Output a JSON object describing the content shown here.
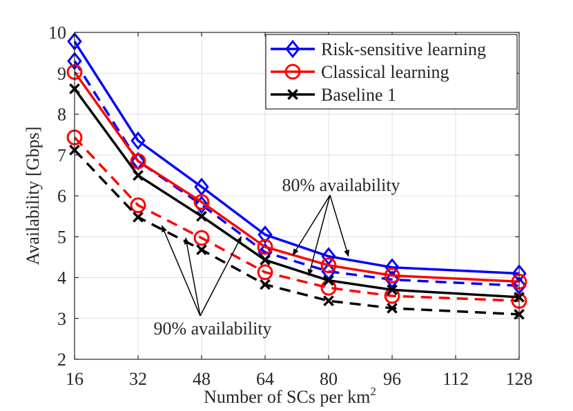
{
  "chart_data": {
    "type": "line",
    "title": "",
    "xlabel": "Number of SCs per km",
    "xlabel_superscript": "2",
    "ylabel": "Availability [Gbps]",
    "x": [
      16,
      32,
      48,
      64,
      80,
      96,
      128
    ],
    "xticks": [
      "16",
      "32",
      "48",
      "64",
      "80",
      "96",
      "112",
      "128"
    ],
    "xtick_values": [
      16,
      32,
      48,
      64,
      80,
      96,
      112,
      128
    ],
    "yticks": [
      "2",
      "3",
      "4",
      "5",
      "6",
      "7",
      "8",
      "9",
      "10"
    ],
    "ytick_values": [
      2,
      3,
      4,
      5,
      6,
      7,
      8,
      9,
      10
    ],
    "xlim": [
      16,
      128
    ],
    "ylim": [
      2,
      10
    ],
    "grid": true,
    "legend_position": "top-right",
    "legend": [
      {
        "label": "Risk-sensitive learning",
        "color": "#0000ff",
        "marker": "diamond"
      },
      {
        "label": "Classical learning",
        "color": "#ff0000",
        "marker": "circle"
      },
      {
        "label": "Baseline 1",
        "color": "#000000",
        "marker": "x"
      }
    ],
    "series": [
      {
        "name": "Risk-sensitive learning (80% availability)",
        "color": "#0000ff",
        "marker": "diamond",
        "dash": "solid",
        "values": [
          9.78,
          7.35,
          6.22,
          5.05,
          4.52,
          4.25,
          4.1
        ]
      },
      {
        "name": "Risk-sensitive learning (90% availability)",
        "color": "#0000ff",
        "marker": "diamond",
        "dash": "dashed",
        "values": [
          9.3,
          6.85,
          5.78,
          4.62,
          4.15,
          3.95,
          3.8
        ]
      },
      {
        "name": "Classical learning (80% availability)",
        "color": "#ff0000",
        "marker": "circle",
        "dash": "solid",
        "values": [
          9.03,
          6.85,
          5.85,
          4.75,
          4.3,
          4.05,
          3.9
        ]
      },
      {
        "name": "Classical learning (90% availability)",
        "color": "#ff0000",
        "marker": "circle",
        "dash": "dashed",
        "values": [
          7.43,
          5.77,
          4.97,
          4.13,
          3.75,
          3.55,
          3.43
        ]
      },
      {
        "name": "Baseline 1 (80% availability)",
        "color": "#000000",
        "marker": "x",
        "dash": "solid",
        "values": [
          8.62,
          6.5,
          5.5,
          4.43,
          3.93,
          3.7,
          3.52
        ]
      },
      {
        "name": "Baseline 1 (90% availability)",
        "color": "#000000",
        "marker": "x",
        "dash": "dashed",
        "values": [
          7.12,
          5.48,
          4.68,
          3.83,
          3.43,
          3.25,
          3.1
        ]
      }
    ],
    "annotations": [
      {
        "text": "80%  availability",
        "arrow_targets": [
          [
            71,
            4.55
          ],
          [
            75,
            4.05
          ],
          [
            85,
            4.52
          ]
        ]
      },
      {
        "text": "90% availability",
        "arrow_targets": [
          [
            38,
            5.27
          ],
          [
            44,
            4.97
          ],
          [
            58,
            5.0
          ]
        ]
      }
    ]
  }
}
